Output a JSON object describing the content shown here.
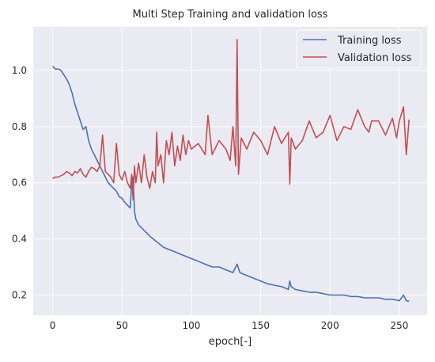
{
  "chart_data": {
    "type": "line",
    "title": "Multi Step Training and validation loss",
    "xlabel": "epoch[-]",
    "ylabel": "",
    "xlim": [
      -14,
      270
    ],
    "ylim": [
      0.128,
      1.155
    ],
    "xticks": [
      0,
      50,
      100,
      150,
      200,
      250
    ],
    "yticks": [
      0.2,
      0.4,
      0.6,
      0.8,
      1.0
    ],
    "xtick_labels": [
      "0",
      "50",
      "100",
      "150",
      "200",
      "250"
    ],
    "ytick_labels": [
      "0.2",
      "0.4",
      "0.6",
      "0.8",
      "1.0"
    ],
    "grid": true,
    "legend_position": "top-right",
    "series": [
      {
        "name": "Training loss",
        "color": "#4c72b0",
        "x": [
          0,
          2,
          4,
          6,
          8,
          10,
          12,
          14,
          16,
          18,
          20,
          22,
          24,
          26,
          28,
          30,
          32,
          34,
          36,
          38,
          40,
          42,
          44,
          46,
          48,
          50,
          52,
          54,
          56,
          57,
          58,
          59,
          60,
          62,
          64,
          66,
          68,
          70,
          75,
          80,
          85,
          90,
          95,
          100,
          105,
          110,
          115,
          120,
          125,
          130,
          133,
          135,
          140,
          145,
          150,
          155,
          160,
          165,
          170,
          171,
          172,
          175,
          180,
          185,
          190,
          195,
          200,
          205,
          210,
          215,
          220,
          225,
          230,
          235,
          240,
          245,
          250,
          253,
          255,
          257
        ],
        "y": [
          1.015,
          1.005,
          1.005,
          1.0,
          0.985,
          0.97,
          0.95,
          0.92,
          0.88,
          0.85,
          0.82,
          0.79,
          0.8,
          0.75,
          0.72,
          0.7,
          0.68,
          0.66,
          0.64,
          0.62,
          0.6,
          0.59,
          0.58,
          0.57,
          0.55,
          0.545,
          0.53,
          0.52,
          0.51,
          0.6,
          0.62,
          0.5,
          0.47,
          0.45,
          0.44,
          0.43,
          0.42,
          0.41,
          0.39,
          0.37,
          0.36,
          0.35,
          0.34,
          0.33,
          0.32,
          0.31,
          0.3,
          0.3,
          0.29,
          0.28,
          0.31,
          0.28,
          0.27,
          0.26,
          0.25,
          0.24,
          0.235,
          0.23,
          0.22,
          0.25,
          0.23,
          0.22,
          0.215,
          0.21,
          0.21,
          0.205,
          0.2,
          0.2,
          0.2,
          0.195,
          0.195,
          0.19,
          0.19,
          0.19,
          0.185,
          0.185,
          0.18,
          0.2,
          0.18,
          0.178
        ]
      },
      {
        "name": "Validation loss",
        "color": "#c44e52",
        "x": [
          0,
          2,
          4,
          6,
          8,
          10,
          12,
          14,
          16,
          18,
          20,
          22,
          24,
          26,
          28,
          30,
          32,
          34,
          36,
          38,
          40,
          42,
          44,
          46,
          48,
          50,
          52,
          54,
          56,
          57,
          58,
          59,
          60,
          62,
          64,
          66,
          68,
          70,
          72,
          74,
          75,
          76,
          78,
          80,
          82,
          84,
          86,
          88,
          90,
          92,
          94,
          96,
          98,
          100,
          105,
          110,
          112,
          115,
          120,
          125,
          128,
          130,
          132,
          133,
          134,
          136,
          140,
          145,
          150,
          155,
          160,
          165,
          170,
          171,
          172,
          175,
          180,
          185,
          190,
          195,
          200,
          205,
          210,
          215,
          220,
          225,
          228,
          230,
          235,
          240,
          245,
          248,
          250,
          253,
          255,
          257
        ],
        "y": [
          0.615,
          0.62,
          0.62,
          0.625,
          0.63,
          0.64,
          0.635,
          0.625,
          0.64,
          0.635,
          0.65,
          0.63,
          0.62,
          0.64,
          0.655,
          0.65,
          0.64,
          0.66,
          0.77,
          0.64,
          0.63,
          0.62,
          0.6,
          0.74,
          0.63,
          0.61,
          0.64,
          0.6,
          0.58,
          0.63,
          0.54,
          0.66,
          0.6,
          0.67,
          0.6,
          0.7,
          0.62,
          0.58,
          0.64,
          0.6,
          0.78,
          0.66,
          0.7,
          0.6,
          0.75,
          0.7,
          0.78,
          0.66,
          0.73,
          0.68,
          0.77,
          0.7,
          0.75,
          0.72,
          0.74,
          0.7,
          0.84,
          0.7,
          0.75,
          0.72,
          0.68,
          0.8,
          0.66,
          1.11,
          0.63,
          0.76,
          0.72,
          0.78,
          0.75,
          0.7,
          0.8,
          0.74,
          0.78,
          0.595,
          0.76,
          0.72,
          0.75,
          0.82,
          0.76,
          0.78,
          0.84,
          0.75,
          0.8,
          0.79,
          0.86,
          0.8,
          0.78,
          0.82,
          0.82,
          0.77,
          0.83,
          0.76,
          0.82,
          0.87,
          0.7,
          0.825
        ]
      }
    ]
  }
}
